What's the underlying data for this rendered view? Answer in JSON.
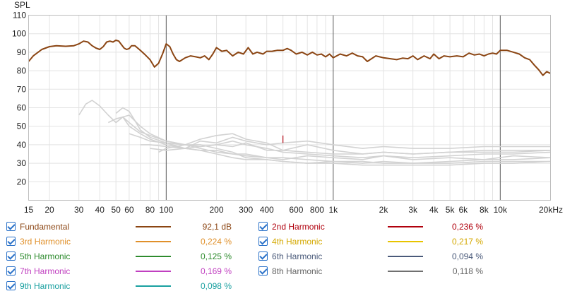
{
  "chart_data": {
    "type": "line",
    "ylabel": "SPL",
    "x_scale": "log",
    "xlim": [
      15,
      20000
    ],
    "ylim": [
      10,
      110
    ],
    "y_ticks": [
      20,
      30,
      40,
      50,
      60,
      70,
      80,
      90,
      100,
      110
    ],
    "x_tick_labels": [
      {
        "f": 15,
        "label": "15"
      },
      {
        "f": 20,
        "label": "20"
      },
      {
        "f": 30,
        "label": "30"
      },
      {
        "f": 40,
        "label": "40"
      },
      {
        "f": 50,
        "label": "50"
      },
      {
        "f": 60,
        "label": "60"
      },
      {
        "f": 80,
        "label": "80"
      },
      {
        "f": 100,
        "label": "100"
      },
      {
        "f": 200,
        "label": "200"
      },
      {
        "f": 300,
        "label": "300"
      },
      {
        "f": 400,
        "label": "400"
      },
      {
        "f": 600,
        "label": "600"
      },
      {
        "f": 800,
        "label": "800"
      },
      {
        "f": 1000,
        "label": "1k"
      },
      {
        "f": 2000,
        "label": "2k"
      },
      {
        "f": 3000,
        "label": "3k"
      },
      {
        "f": 4000,
        "label": "4k"
      },
      {
        "f": 5000,
        "label": "5k"
      },
      {
        "f": 6000,
        "label": "6k"
      },
      {
        "f": 8000,
        "label": "8k"
      },
      {
        "f": 10000,
        "label": "10k"
      },
      {
        "f": 20000,
        "label": "20kHz"
      }
    ],
    "grid": true,
    "series": [
      {
        "name": "Fundamental",
        "color": "#8b4513",
        "x": [
          15,
          16,
          18,
          20,
          22,
          25,
          28,
          30,
          32,
          34,
          36,
          38,
          40,
          42,
          44,
          46,
          48,
          50,
          52,
          54,
          56,
          58,
          60,
          62,
          65,
          70,
          75,
          80,
          85,
          90,
          95,
          100,
          105,
          110,
          115,
          120,
          130,
          140,
          150,
          160,
          170,
          180,
          190,
          200,
          215,
          230,
          250,
          270,
          290,
          310,
          330,
          350,
          380,
          400,
          430,
          460,
          500,
          530,
          560,
          600,
          650,
          700,
          750,
          800,
          850,
          900,
          950,
          1000,
          1100,
          1200,
          1300,
          1400,
          1500,
          1600,
          1800,
          2000,
          2200,
          2400,
          2600,
          2800,
          3000,
          3200,
          3500,
          3800,
          4000,
          4300,
          4600,
          5000,
          5500,
          6000,
          6500,
          7000,
          7500,
          8000,
          8500,
          9000,
          9500,
          10000,
          10500,
          11000,
          12000,
          13000,
          14000,
          15000,
          16000,
          17000,
          18000,
          19000,
          20000
        ],
        "y": [
          85,
          88,
          91.5,
          93,
          93.5,
          93.2,
          93.5,
          94.5,
          96,
          95.5,
          93.5,
          92.2,
          91.5,
          93,
          95.5,
          96,
          95.5,
          96.5,
          96,
          94,
          92.2,
          91.5,
          92,
          93.5,
          93.5,
          91,
          88.5,
          86,
          82,
          84,
          89,
          94.5,
          93,
          89,
          86,
          85,
          87,
          88,
          87.5,
          87,
          88,
          86,
          89,
          92.5,
          90.5,
          91,
          88,
          90,
          89,
          92.5,
          89,
          90,
          89,
          90.5,
          90.5,
          91,
          91,
          92,
          91,
          89,
          90,
          88.5,
          90,
          88.5,
          89,
          87.5,
          89,
          87,
          89,
          88,
          89.5,
          88,
          87.5,
          85,
          88,
          87,
          86.5,
          86,
          86.8,
          86.5,
          88,
          86,
          88,
          86.5,
          89,
          86.5,
          88,
          87.5,
          88,
          87.5,
          89.5,
          88.5,
          89,
          88,
          89,
          89.5,
          89,
          91,
          91,
          91,
          90,
          89,
          87,
          86,
          83,
          80.5,
          77.5,
          79.5,
          78.5
        ]
      },
      {
        "name": "2nd Harmonic",
        "color": "#b0000d"
      },
      {
        "name": "3rd Harmonic",
        "color": "#e0902a"
      },
      {
        "name": "4th Harmonic",
        "color": "#e8c400"
      },
      {
        "name": "5th Harmonic",
        "color": "#2e8b2e"
      },
      {
        "name": "6th Harmonic",
        "color": "#4a5a7a"
      },
      {
        "name": "7th Harmonic",
        "color": "#c040c0"
      },
      {
        "name": "8th Harmonic",
        "color": "#707070"
      },
      {
        "name": "9th Harmonic",
        "color": "#1aa0a0"
      }
    ],
    "harmonic_traces": {
      "color": "#d2d2d2",
      "traces": [
        {
          "x": [
            30,
            33,
            36,
            40,
            45,
            50,
            55,
            60,
            70,
            80,
            100,
            130,
            160,
            200,
            250,
            300,
            400,
            500,
            700,
            1000,
            1500,
            2000,
            3000,
            5000,
            8000,
            12000,
            20000
          ],
          "y": [
            56,
            62,
            64,
            61,
            56,
            52,
            55,
            56,
            50,
            46,
            42,
            40,
            38,
            36,
            35,
            35,
            33,
            33,
            32,
            31,
            31,
            30,
            30,
            30,
            31,
            31,
            31
          ]
        },
        {
          "x": [
            50,
            55,
            60,
            65,
            70,
            80,
            100,
            130,
            160,
            200,
            250,
            300,
            400,
            500,
            700,
            1000,
            1500,
            2000,
            3000,
            5000,
            8000,
            12000,
            20000
          ],
          "y": [
            57,
            60,
            58,
            53,
            48,
            44,
            41,
            38,
            37,
            35,
            33,
            32,
            32,
            31,
            30,
            30,
            29,
            29,
            29,
            29,
            30,
            30,
            31
          ]
        },
        {
          "x": [
            50,
            55,
            60,
            70,
            80,
            100,
            130,
            160,
            200,
            250,
            300,
            400,
            500,
            700,
            1000,
            1500,
            2000,
            3000,
            5000,
            8000,
            12000,
            20000
          ],
          "y": [
            52,
            55,
            52,
            47,
            45,
            42,
            40,
            40,
            38,
            36,
            33,
            32,
            31,
            30,
            31,
            30,
            31,
            30,
            31,
            32,
            32,
            33
          ]
        },
        {
          "x": [
            45,
            50,
            55,
            60,
            70,
            80,
            100,
            130,
            160,
            200,
            250,
            300,
            400,
            500,
            700,
            1000,
            1500,
            2000,
            3000,
            5000,
            8000,
            12000,
            20000
          ],
          "y": [
            52,
            54,
            55,
            50,
            46,
            43,
            40,
            38,
            37,
            37,
            35,
            34,
            33,
            32,
            34,
            33,
            32,
            34,
            32,
            33,
            32,
            34,
            33
          ]
        },
        {
          "x": [
            60,
            70,
            80,
            100,
            130,
            160,
            200,
            250,
            300,
            400,
            500,
            700,
            1000,
            1500,
            2000,
            3000,
            5000,
            8000,
            12000,
            20000
          ],
          "y": [
            46,
            44,
            42,
            41,
            40,
            39,
            40,
            42,
            40,
            38,
            36,
            35,
            34,
            33,
            34,
            33,
            34,
            35,
            35,
            36
          ]
        },
        {
          "x": [
            70,
            80,
            100,
            130,
            160,
            200,
            250,
            300,
            400,
            500,
            700,
            1000,
            1500,
            2000,
            3000,
            5000,
            8000,
            12000,
            20000
          ],
          "y": [
            40,
            40,
            39,
            38,
            39,
            40,
            39,
            41,
            37,
            37,
            40,
            37,
            35,
            36,
            35,
            36,
            37,
            37,
            37
          ]
        },
        {
          "x": [
            80,
            100,
            130,
            160,
            200,
            250,
            300,
            400,
            500,
            700,
            1000,
            1500,
            2000,
            3000,
            5000,
            8000,
            12000,
            20000
          ],
          "y": [
            38,
            37,
            38,
            42,
            41,
            44,
            42,
            40,
            41,
            42,
            40,
            38,
            39,
            38,
            38,
            39,
            39,
            39
          ]
        },
        {
          "x": [
            90,
            100,
            130,
            160,
            200,
            250,
            300,
            400,
            500,
            700,
            1000,
            1500,
            2000,
            3000,
            5000,
            8000,
            12000,
            20000
          ],
          "y": [
            36,
            38,
            40,
            43,
            45,
            46,
            43,
            41,
            37,
            36,
            35,
            35,
            36,
            35,
            36,
            36,
            36,
            37
          ]
        }
      ]
    },
    "peak_marker": {
      "x": 500,
      "y_low": 41,
      "y_high": 45,
      "color": "#b0000d"
    }
  },
  "legend": [
    {
      "name": "Fundamental",
      "value": "92,1 dB",
      "color": "#8b4513",
      "text_color": "#8b4513"
    },
    {
      "name": "2nd Harmonic",
      "value": "0,236 %",
      "color": "#b0000d",
      "text_color": "#b0000d"
    },
    {
      "name": "3rd Harmonic",
      "value": "0,224 %",
      "color": "#e0902a",
      "text_color": "#e0902a"
    },
    {
      "name": "4th Harmonic",
      "value": "0,217 %",
      "color": "#e8c400",
      "text_color": "#d4a800"
    },
    {
      "name": "5th Harmonic",
      "value": "0,125 %",
      "color": "#2e8b2e",
      "text_color": "#2e8b2e"
    },
    {
      "name": "6th Harmonic",
      "value": "0,094 %",
      "color": "#4a5a7a",
      "text_color": "#4a5a7a"
    },
    {
      "name": "7th Harmonic",
      "value": "0,169 %",
      "color": "#c040c0",
      "text_color": "#c040c0"
    },
    {
      "name": "8th Harmonic",
      "value": "0,118 %",
      "color": "#707070",
      "text_color": "#666666"
    },
    {
      "name": "9th Harmonic",
      "value": "0,098 %",
      "color": "#1aa0a0",
      "text_color": "#1aa0a0"
    }
  ]
}
